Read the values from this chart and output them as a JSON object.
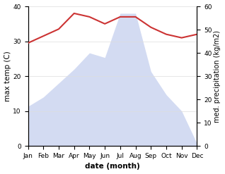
{
  "months": [
    "Jan",
    "Feb",
    "Mar",
    "Apr",
    "May",
    "Jun",
    "Jul",
    "Aug",
    "Sep",
    "Oct",
    "Nov",
    "Dec"
  ],
  "temperature": [
    29.5,
    31.5,
    33.5,
    38.0,
    37.0,
    35.0,
    37.0,
    37.0,
    34.0,
    32.0,
    31.0,
    32.0
  ],
  "rainfall": [
    17,
    21,
    27,
    33,
    40,
    38,
    57,
    57,
    32,
    22,
    15,
    1
  ],
  "temp_ylim": [
    0,
    40
  ],
  "rain_ylim": [
    0,
    60
  ],
  "temp_yticks": [
    0,
    10,
    20,
    30,
    40
  ],
  "rain_yticks": [
    0,
    10,
    20,
    30,
    40,
    50,
    60
  ],
  "temp_color": "#cc3333",
  "rain_fill_color": "#b0bee8",
  "rain_fill_alpha": 0.55,
  "xlabel": "date (month)",
  "ylabel_left": "max temp (C)",
  "ylabel_right": "med. precipitation (kg/m2)",
  "label_fontsize": 7.5,
  "tick_fontsize": 6.5,
  "bg_color": "#ffffff"
}
